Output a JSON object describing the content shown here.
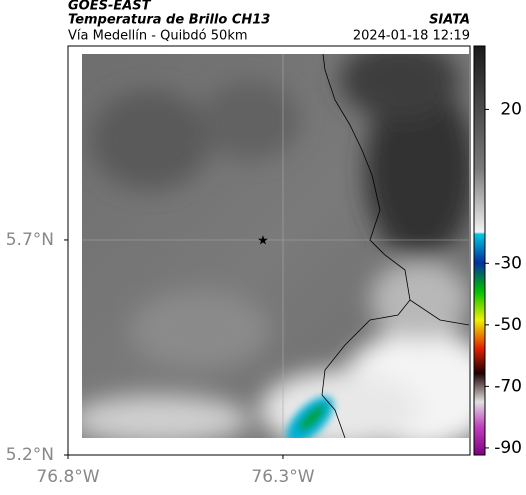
{
  "header": {
    "product": "GOES-EAST",
    "title": "Temperatura de Brillo CH13",
    "subtitle": "Vía Medellín - Quibdó 50km",
    "source": "SIATA",
    "datetime": "2024-01-18 12:19"
  },
  "map": {
    "lonlim": [
      -76.8,
      -75.865
    ],
    "latlim": [
      5.2,
      6.151
    ],
    "lon_ticks": [
      {
        "value": -76.8,
        "label": "76.8°W"
      },
      {
        "value": -76.3,
        "label": "76.3°W"
      }
    ],
    "lat_ticks": [
      {
        "value": 5.7,
        "label": "5.7°N"
      },
      {
        "value": 5.2,
        "label": "5.2°N"
      }
    ],
    "colorbar": {
      "lim": [
        -92.3,
        40.6
      ],
      "ticks": [
        20,
        -30,
        -50,
        -70,
        -90
      ]
    }
  }
}
